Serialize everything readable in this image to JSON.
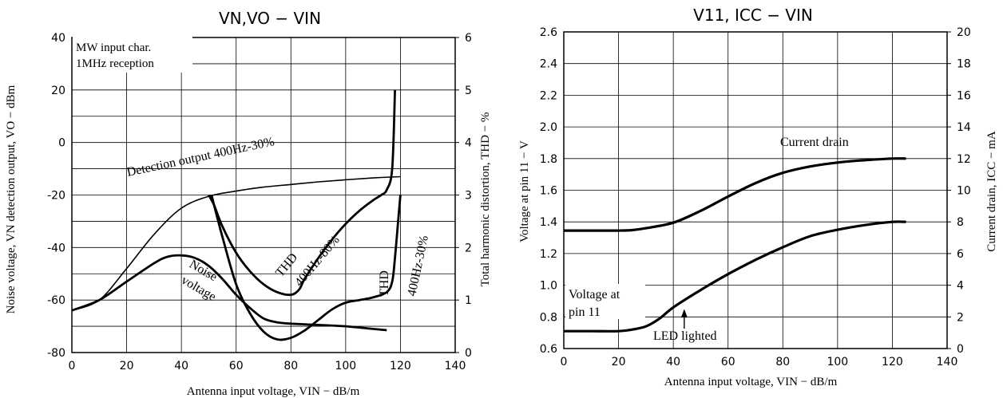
{
  "chart_data": [
    {
      "type": "line",
      "title": "VN,VO  −  VIN",
      "xlabel": "Antenna input voltage, VIN  −  dB/m",
      "ylabel_left": "Noise voltage, VN  detection output, VO  −  dBm",
      "ylabel_right": "Total harmonic distortion, THD  −  %",
      "xlim": [
        0,
        140
      ],
      "ylim_left": [
        -80,
        40
      ],
      "ylim_right": [
        0,
        6
      ],
      "x_ticks": [
        "0",
        "20",
        "40",
        "60",
        "80",
        "100",
        "120",
        "140"
      ],
      "y_left_ticks": [
        "40",
        "20",
        "0",
        "-20",
        "-40",
        "-60",
        "-80"
      ],
      "y_right_ticks": [
        "6",
        "5",
        "4",
        "3",
        "2",
        "1",
        "0"
      ],
      "grid": true,
      "inset_note": [
        "MW input char.",
        "1MHz reception"
      ],
      "series": [
        {
          "name": "Detection output 400Hz-30%",
          "axis": "left",
          "x": [
            0,
            10,
            20,
            30,
            40,
            50,
            60,
            70,
            80,
            90,
            100,
            110,
            120
          ],
          "y": [
            -64,
            -60,
            -48,
            -35,
            -25,
            -20.5,
            -18.5,
            -17,
            -16,
            -15,
            -14.2,
            -13.5,
            -13
          ]
        },
        {
          "name": "Noise voltage",
          "axis": "left",
          "x": [
            0,
            10,
            20,
            30,
            35,
            40,
            45,
            50,
            55,
            60,
            65,
            70,
            75,
            80,
            90,
            100,
            110,
            115
          ],
          "y": [
            -64,
            -60,
            -53,
            -46,
            -43.5,
            -43,
            -44,
            -47,
            -52,
            -58,
            -63,
            -67,
            -68.5,
            -69,
            -69.5,
            -70,
            -71,
            -71.5
          ]
        },
        {
          "name": "THD 400Hz-80%",
          "axis": "right",
          "x": [
            50,
            52,
            55,
            60,
            65,
            70,
            75,
            80,
            83,
            85,
            90,
            95,
            100,
            105,
            110,
            113,
            115,
            117,
            118
          ],
          "y": [
            3.0,
            2.8,
            2.4,
            1.9,
            1.55,
            1.3,
            1.15,
            1.1,
            1.2,
            1.4,
            1.8,
            2.15,
            2.45,
            2.7,
            2.9,
            3.0,
            3.1,
            3.5,
            5.0
          ]
        },
        {
          "name": "THD 400Hz-30%",
          "axis": "right",
          "x": [
            51,
            55,
            60,
            65,
            70,
            75,
            80,
            85,
            90,
            95,
            100,
            105,
            110,
            115,
            117,
            118,
            119,
            120
          ],
          "y": [
            3.0,
            2.2,
            1.3,
            0.75,
            0.4,
            0.25,
            0.28,
            0.42,
            0.62,
            0.82,
            0.95,
            1.0,
            1.05,
            1.15,
            1.35,
            1.8,
            2.4,
            3.0
          ]
        }
      ],
      "annotations": [
        {
          "text": "Detection output  400Hz-30%"
        },
        {
          "text": "Noise voltage"
        },
        {
          "text": "THD 400Hz-80%"
        },
        {
          "text": "THD 400Hz-30%"
        }
      ]
    },
    {
      "type": "line",
      "title": "V11, ICC  −  VIN",
      "xlabel": "Antenna input voltage, VIN  −  dB/m",
      "ylabel_left": "Voltage at pin 11  −  V",
      "ylabel_right": "Current drain, ICC  −  mA",
      "xlim": [
        0,
        140
      ],
      "ylim_left": [
        0.6,
        2.6
      ],
      "ylim_right": [
        0,
        20
      ],
      "x_ticks": [
        "0",
        "20",
        "40",
        "60",
        "80",
        "100",
        "120",
        "140"
      ],
      "y_left_ticks": [
        "2.6",
        "2.4",
        "2.2",
        "2.0",
        "1.8",
        "1.6",
        "1.4",
        "1.2",
        "1.0",
        "0.8",
        "0.6"
      ],
      "y_right_ticks": [
        "20",
        "18",
        "16",
        "14",
        "12",
        "10",
        "8",
        "6",
        "4",
        "2",
        "0"
      ],
      "grid": true,
      "series": [
        {
          "name": "Current drain",
          "axis": "right",
          "x": [
            0,
            10,
            20,
            25,
            30,
            40,
            50,
            60,
            70,
            80,
            90,
            100,
            110,
            120,
            125
          ],
          "y": [
            7.45,
            7.45,
            7.45,
            7.48,
            7.6,
            7.95,
            8.7,
            9.6,
            10.45,
            11.1,
            11.5,
            11.75,
            11.9,
            12.0,
            12.0
          ]
        },
        {
          "name": "Voltage at pin 11",
          "axis": "left",
          "x": [
            0,
            10,
            20,
            25,
            30,
            35,
            40,
            50,
            60,
            70,
            80,
            90,
            100,
            110,
            120,
            125
          ],
          "y": [
            0.71,
            0.71,
            0.71,
            0.72,
            0.74,
            0.79,
            0.86,
            0.97,
            1.07,
            1.16,
            1.24,
            1.31,
            1.35,
            1.38,
            1.4,
            1.4
          ]
        }
      ],
      "annotations": [
        {
          "text": "Current drain"
        },
        {
          "text": "Voltage at pin 11"
        },
        {
          "text": "LED lighted",
          "x": 44
        }
      ]
    }
  ]
}
